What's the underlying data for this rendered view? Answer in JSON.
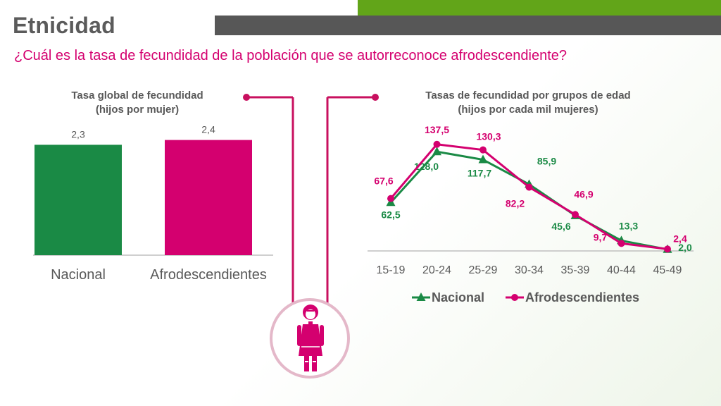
{
  "header": {
    "title": "Etnicidad",
    "question": "¿Cuál es la tasa de fecundidad de la población que se autorreconoce afrodescendiente?"
  },
  "colors": {
    "nacional": "#1a8a45",
    "afro": "#d4006f",
    "accent_green": "#62a519",
    "dark_gray": "#575757",
    "connector": "#c8105f"
  },
  "icons": [
    "woman-figure-icon"
  ],
  "left_chart": {
    "title_line1": "Tasa global de fecundidad",
    "title_line2": "(hijos por mujer)"
  },
  "right_chart": {
    "title_line1": "Tasas de fecundidad por grupos de edad",
    "title_line2": "(hijos por cada mil mujeres)"
  },
  "chart_data": [
    {
      "type": "bar",
      "title": "Tasa global de fecundidad (hijos por mujer)",
      "categories": [
        "Nacional",
        "Afrodescendientes"
      ],
      "values": [
        2.3,
        2.4
      ],
      "value_labels": [
        "2,3",
        "2,4"
      ],
      "colors": [
        "#1a8a45",
        "#d4006f"
      ],
      "ylim": [
        0,
        2.6
      ],
      "grid": false
    },
    {
      "type": "line",
      "title": "Tasas de fecundidad por grupos de edad (hijos por cada mil mujeres)",
      "categories": [
        "15-19",
        "20-24",
        "25-29",
        "30-34",
        "35-39",
        "40-44",
        "45-49"
      ],
      "series": [
        {
          "name": "Nacional",
          "values": [
            62.5,
            128.0,
            117.7,
            85.9,
            45.6,
            13.3,
            2.0
          ],
          "labels": [
            "62,5",
            "128,0",
            "117,7",
            "85,9",
            "45,6",
            "13,3",
            "2,0"
          ],
          "marker": "triangle",
          "color": "#1a8a45"
        },
        {
          "name": "Afrodescendientes",
          "values": [
            67.6,
            137.5,
            130.3,
            82.2,
            46.9,
            9.7,
            2.4
          ],
          "labels": [
            "67,6",
            "137,5",
            "130,3",
            "82,2",
            "46,9",
            "9,7",
            "2,4"
          ],
          "marker": "circle",
          "color": "#d4006f"
        }
      ],
      "ylim": [
        0,
        160
      ],
      "grid": false,
      "legend_position": "bottom"
    }
  ]
}
